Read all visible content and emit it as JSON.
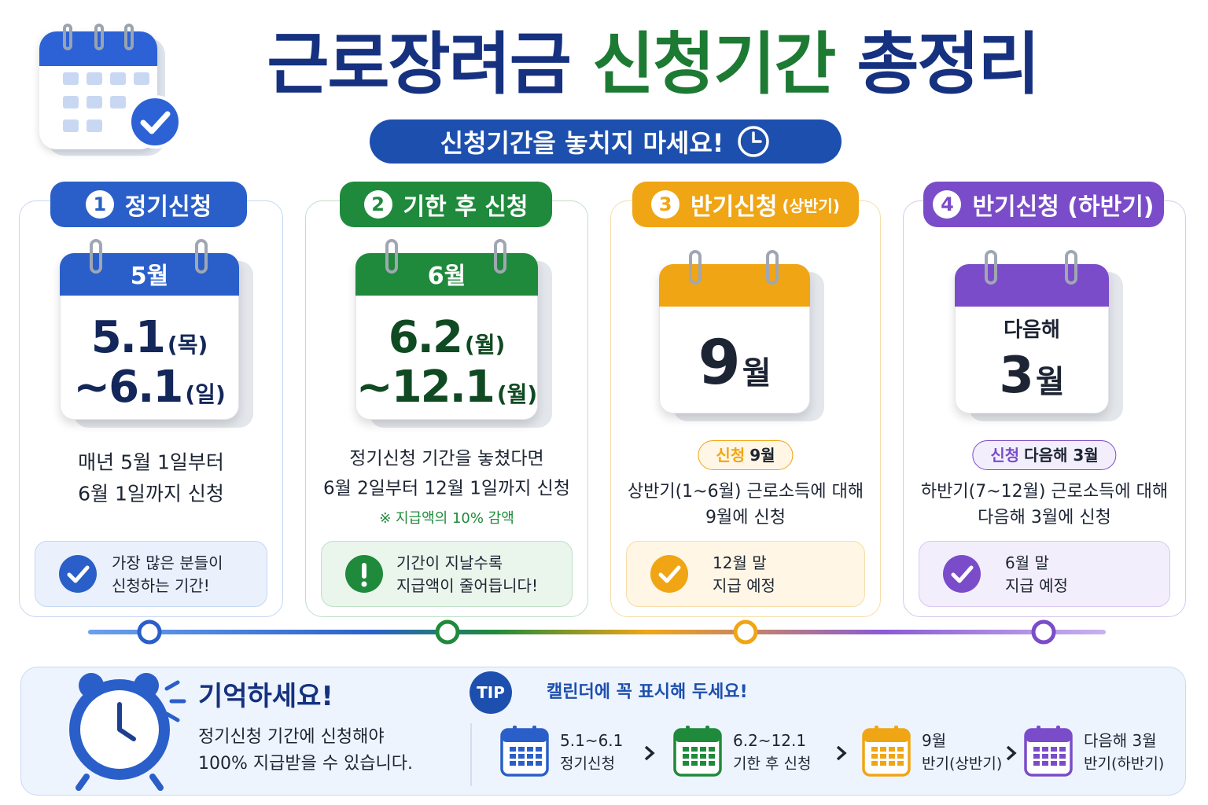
{
  "header": {
    "title_part1": "근로장려금",
    "title_part2": "신청기간",
    "title_part3": "총정리",
    "subtitle": "신청기간을 놓치지 마세요!"
  },
  "cards": [
    {
      "number": "1",
      "label": "정기신청",
      "calendar": {
        "header": "5월",
        "rows": [
          {
            "main": "5.1",
            "sub": "(목)"
          },
          {
            "main": "~6.1",
            "sub": "(일)"
          }
        ]
      },
      "description": [
        "매년 5월 1일부터",
        "6월 1일까지 신청"
      ],
      "info": [
        "가장 많은 분들이",
        "신청하는 기간!"
      ]
    },
    {
      "number": "2",
      "label": "기한 후 신청",
      "calendar": {
        "header": "6월",
        "rows": [
          {
            "main": "6.2",
            "sub": "(월)"
          },
          {
            "main": "~12.1",
            "sub": "(월)"
          }
        ]
      },
      "description": [
        "정기신청 기간을 놓쳤다면",
        "6월 2일부터 12월 1일까지 신청"
      ],
      "note": "※ 지급액의 10% 감액",
      "info": [
        "기간이 지날수록",
        "지급액이 줄어듭니다!"
      ]
    },
    {
      "number": "3",
      "label": "반기신청",
      "label_sub": "(상반기)",
      "calendar": {
        "rows": [
          {
            "main": "9",
            "sub": "월"
          }
        ]
      },
      "badge": {
        "label": "신청",
        "value": "9월"
      },
      "description": [
        "상반기(1~6월) 근로소득에 대해",
        "9월에 신청"
      ],
      "info": [
        "12월 말",
        "지급 예정"
      ]
    },
    {
      "number": "4",
      "label": "반기신청 (하반기)",
      "calendar": {
        "caption": "다음해",
        "rows": [
          {
            "main": "3",
            "sub": "월"
          }
        ]
      },
      "badge": {
        "label": "신청",
        "value": "다음해 3월"
      },
      "description": [
        "하반기(7~12월) 근로소득에 대해",
        "다음해 3월에 신청"
      ],
      "info": [
        "6월 말",
        "지급 예정"
      ]
    }
  ],
  "reminder": {
    "title": "기억하세요!",
    "lines": [
      "정기신청 기간에 신청해야",
      "100% 지급받을 수 있습니다."
    ]
  },
  "tip": {
    "badge": "TIP",
    "title": "캘린더에 꼭 표시해 두세요!",
    "items": [
      {
        "line1": "5.1~6.1",
        "line2": "정기신청"
      },
      {
        "line1": "6.2~12.1",
        "line2": "기한 후 신청"
      },
      {
        "line1": "9월",
        "line2": "반기(상반기)"
      },
      {
        "line1": "다음해 3월",
        "line2": "반기(하반기)"
      }
    ]
  }
}
